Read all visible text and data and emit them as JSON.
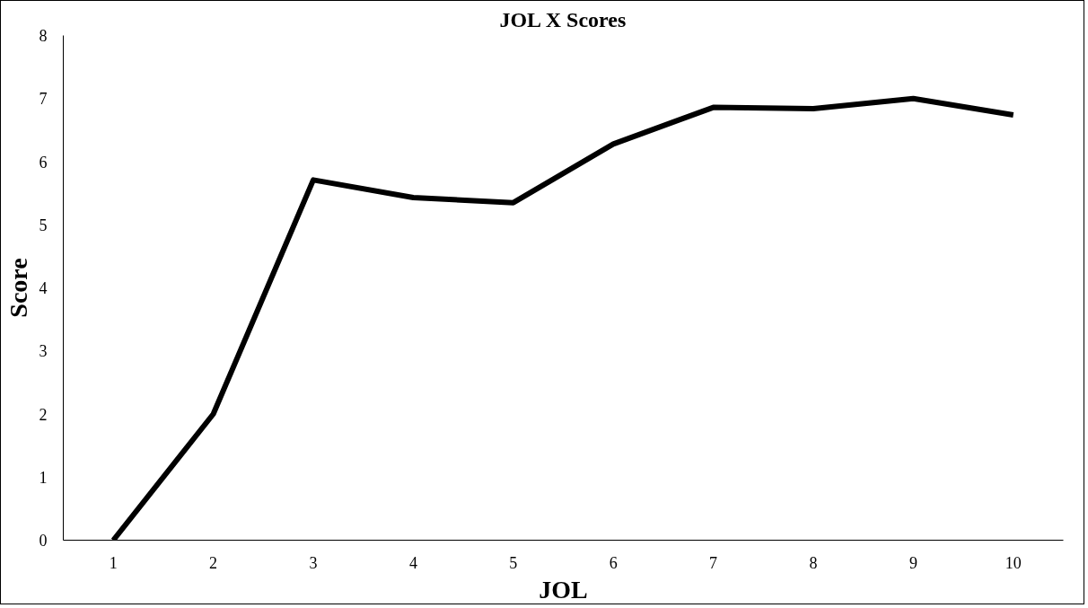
{
  "chart_data": {
    "type": "line",
    "title": "JOL X Scores",
    "xlabel": "JOL",
    "ylabel": "Score",
    "categories": [
      "1",
      "2",
      "3",
      "4",
      "5",
      "6",
      "7",
      "8",
      "9",
      "10"
    ],
    "series": [
      {
        "color": "#000000",
        "values": [
          0,
          2.0,
          5.71,
          5.43,
          5.35,
          6.28,
          6.86,
          6.84,
          7.0,
          6.74
        ]
      }
    ],
    "ylim": [
      0,
      8
    ],
    "yticks": [
      0,
      1,
      2,
      3,
      4,
      5,
      6,
      7,
      8
    ],
    "line_style": "solid"
  }
}
